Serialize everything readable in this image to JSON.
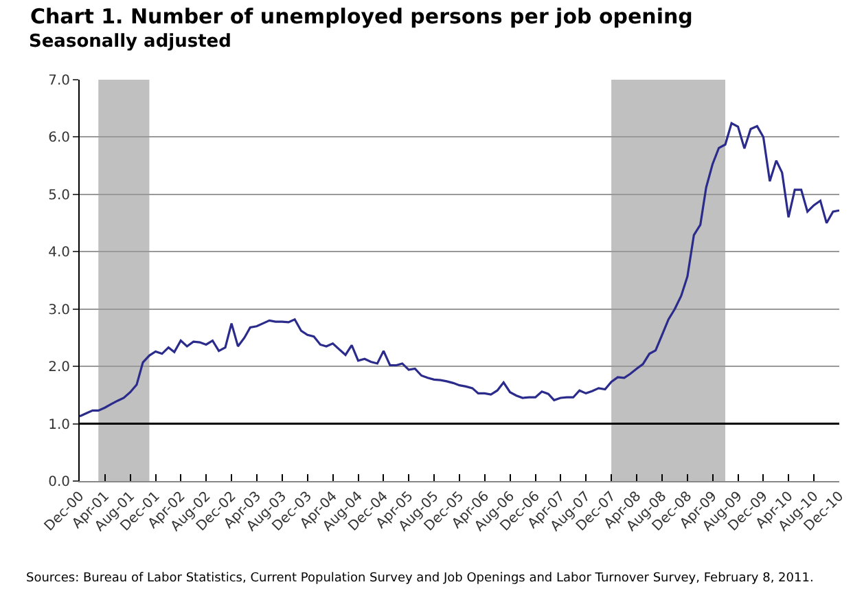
{
  "chart_data": {
    "type": "line",
    "title": "Chart 1. Number of unemployed persons per job opening",
    "subtitle": "Seasonally adjusted",
    "annotations": [
      "Sources: Bureau of Labor Statistics, Current Population Survey and Job Openings and Labor Turnover Survey, February 8, 2011."
    ],
    "x": [
      "2000-12",
      "2001-01",
      "2001-02",
      "2001-03",
      "2001-04",
      "2001-05",
      "2001-06",
      "2001-07",
      "2001-08",
      "2001-09",
      "2001-10",
      "2001-11",
      "2001-12",
      "2002-01",
      "2002-02",
      "2002-03",
      "2002-04",
      "2002-05",
      "2002-06",
      "2002-07",
      "2002-08",
      "2002-09",
      "2002-10",
      "2002-11",
      "2002-12",
      "2003-01",
      "2003-02",
      "2003-03",
      "2003-04",
      "2003-05",
      "2003-06",
      "2003-07",
      "2003-08",
      "2003-09",
      "2003-10",
      "2003-11",
      "2003-12",
      "2004-01",
      "2004-02",
      "2004-03",
      "2004-04",
      "2004-05",
      "2004-06",
      "2004-07",
      "2004-08",
      "2004-09",
      "2004-10",
      "2004-11",
      "2004-12",
      "2005-01",
      "2005-02",
      "2005-03",
      "2005-04",
      "2005-05",
      "2005-06",
      "2005-07",
      "2005-08",
      "2005-09",
      "2005-10",
      "2005-11",
      "2005-12",
      "2006-01",
      "2006-02",
      "2006-03",
      "2006-04",
      "2006-05",
      "2006-06",
      "2006-07",
      "2006-08",
      "2006-09",
      "2006-10",
      "2006-11",
      "2006-12",
      "2007-01",
      "2007-02",
      "2007-03",
      "2007-04",
      "2007-05",
      "2007-06",
      "2007-07",
      "2007-08",
      "2007-09",
      "2007-10",
      "2007-11",
      "2007-12",
      "2008-01",
      "2008-02",
      "2008-03",
      "2008-04",
      "2008-05",
      "2008-06",
      "2008-07",
      "2008-08",
      "2008-09",
      "2008-10",
      "2008-11",
      "2008-12",
      "2009-01",
      "2009-02",
      "2009-03",
      "2009-04",
      "2009-05",
      "2009-06",
      "2009-07",
      "2009-08",
      "2009-09",
      "2009-10",
      "2009-11",
      "2009-12",
      "2010-01",
      "2010-02",
      "2010-03",
      "2010-04",
      "2010-05",
      "2010-06",
      "2010-07",
      "2010-08",
      "2010-09",
      "2010-10",
      "2010-11",
      "2010-12"
    ],
    "series": [
      {
        "color": "#2b2b8c",
        "values": [
          1.13,
          1.18,
          1.23,
          1.23,
          1.28,
          1.34,
          1.4,
          1.45,
          1.55,
          1.68,
          2.07,
          2.19,
          2.26,
          2.22,
          2.33,
          2.25,
          2.45,
          2.35,
          2.43,
          2.42,
          2.38,
          2.45,
          2.27,
          2.33,
          2.75,
          2.35,
          2.5,
          2.68,
          2.7,
          2.75,
          2.8,
          2.78,
          2.78,
          2.77,
          2.82,
          2.62,
          2.55,
          2.52,
          2.38,
          2.35,
          2.4,
          2.3,
          2.2,
          2.37,
          2.1,
          2.13,
          2.08,
          2.05,
          2.27,
          2.02,
          2.02,
          2.05,
          1.94,
          1.96,
          1.84,
          1.8,
          1.77,
          1.76,
          1.74,
          1.71,
          1.67,
          1.65,
          1.62,
          1.53,
          1.53,
          1.51,
          1.58,
          1.72,
          1.55,
          1.49,
          1.45,
          1.46,
          1.46,
          1.56,
          1.52,
          1.41,
          1.45,
          1.46,
          1.46,
          1.58,
          1.53,
          1.57,
          1.62,
          1.6,
          1.73,
          1.81,
          1.8,
          1.87,
          1.96,
          2.04,
          2.22,
          2.28,
          2.55,
          2.82,
          3.0,
          3.23,
          3.57,
          4.29,
          4.47,
          5.12,
          5.53,
          5.81,
          5.87,
          6.24,
          6.18,
          5.8,
          6.14,
          6.19,
          6.0,
          5.23,
          5.59,
          5.38,
          4.6,
          5.08,
          5.08,
          4.7,
          4.81,
          4.89,
          4.5,
          4.7,
          4.72
        ]
      }
    ],
    "xlim": [
      "2000-12",
      "2010-12"
    ],
    "xticks": [
      {
        "value": "2000-12",
        "label": "Dec-00"
      },
      {
        "value": "2001-04",
        "label": "Apr-01"
      },
      {
        "value": "2001-08",
        "label": "Aug-01"
      },
      {
        "value": "2001-12",
        "label": "Dec-01"
      },
      {
        "value": "2002-04",
        "label": "Apr-02"
      },
      {
        "value": "2002-08",
        "label": "Aug-02"
      },
      {
        "value": "2002-12",
        "label": "Dec-02"
      },
      {
        "value": "2003-04",
        "label": "Apr-03"
      },
      {
        "value": "2003-08",
        "label": "Aug-03"
      },
      {
        "value": "2003-12",
        "label": "Dec-03"
      },
      {
        "value": "2004-04",
        "label": "Apr-04"
      },
      {
        "value": "2004-08",
        "label": "Aug-04"
      },
      {
        "value": "2004-12",
        "label": "Dec-04"
      },
      {
        "value": "2005-04",
        "label": "Apr-05"
      },
      {
        "value": "2005-08",
        "label": "Aug-05"
      },
      {
        "value": "2005-12",
        "label": "Dec-05"
      },
      {
        "value": "2006-04",
        "label": "Apr-06"
      },
      {
        "value": "2006-08",
        "label": "Aug-06"
      },
      {
        "value": "2006-12",
        "label": "Dec-06"
      },
      {
        "value": "2007-04",
        "label": "Apr-07"
      },
      {
        "value": "2007-08",
        "label": "Aug-07"
      },
      {
        "value": "2007-12",
        "label": "Dec-07"
      },
      {
        "value": "2008-04",
        "label": "Apr-08"
      },
      {
        "value": "2008-08",
        "label": "Aug-08"
      },
      {
        "value": "2008-12",
        "label": "Dec-08"
      },
      {
        "value": "2009-04",
        "label": "Apr-09"
      },
      {
        "value": "2009-08",
        "label": "Aug-09"
      },
      {
        "value": "2009-12",
        "label": "Dec-09"
      },
      {
        "value": "2010-04",
        "label": "Apr-10"
      },
      {
        "value": "2010-08",
        "label": "Aug-10"
      },
      {
        "value": "2010-12",
        "label": "Dec-10"
      }
    ],
    "ylim": [
      0,
      7
    ],
    "yticks": [
      {
        "value": 0,
        "label": "0.0"
      },
      {
        "value": 1,
        "label": "1.0"
      },
      {
        "value": 2,
        "label": "2.0"
      },
      {
        "value": 3,
        "label": "3.0"
      },
      {
        "value": 4,
        "label": "4.0"
      },
      {
        "value": 5,
        "label": "5.0"
      },
      {
        "value": 6,
        "label": "6.0"
      },
      {
        "value": 7,
        "label": "7.0"
      }
    ],
    "grid": "y",
    "marker": "none",
    "line_style": "solid",
    "ref_lines": [
      {
        "axis": "y",
        "value": 1,
        "color": "#000000"
      }
    ],
    "bands": [
      {
        "axis": "x",
        "from": "2001-03",
        "to": "2001-11",
        "color": "#c0c0c0"
      },
      {
        "axis": "x",
        "from": "2007-12",
        "to": "2009-06",
        "color": "#c0c0c0"
      }
    ]
  }
}
